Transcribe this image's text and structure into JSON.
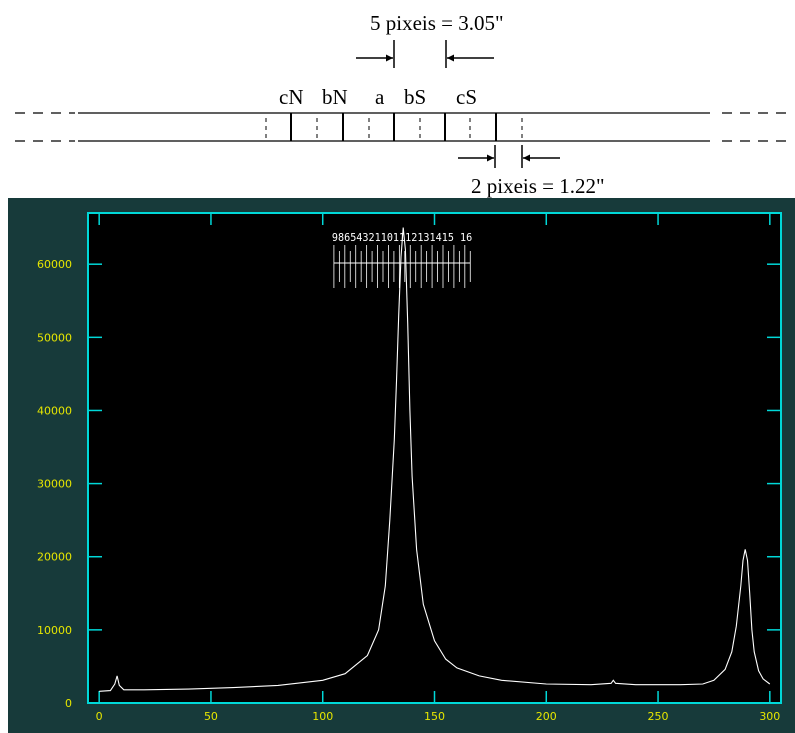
{
  "annotations": {
    "top": "5 pixeis = 3.05\"",
    "bottom": "2 pixeis = 1.22\""
  },
  "slit_labels": [
    "cN",
    "bN",
    "a",
    "bS",
    "cS"
  ],
  "colors": {
    "plot_background": "#173a3a",
    "axes_frame": "#00d8d8",
    "tick_labels": "#e6e600",
    "trace": "#ffffff"
  },
  "chart_data": {
    "type": "line",
    "title": "",
    "xlabel": "",
    "ylabel": "",
    "xlim": [
      -5,
      305
    ],
    "ylim": [
      0,
      67000
    ],
    "x_ticks": [
      0,
      50,
      100,
      150,
      200,
      250,
      300
    ],
    "y_ticks": [
      0,
      10000,
      20000,
      30000,
      40000,
      50000,
      60000
    ],
    "grid": false,
    "aperture_labels": "98654321101112131415 16",
    "aperture_x_range": [
      105,
      166
    ],
    "series": [
      {
        "name": "",
        "x": [
          0,
          5,
          7,
          8,
          9,
          11,
          20,
          40,
          60,
          80,
          100,
          110,
          120,
          125,
          128,
          130,
          132,
          133,
          134,
          135,
          136,
          137,
          138,
          139,
          140,
          142,
          145,
          150,
          155,
          160,
          170,
          180,
          200,
          220,
          229,
          230,
          231,
          240,
          260,
          270,
          275,
          280,
          283,
          285,
          287,
          288,
          289,
          290,
          291,
          292,
          293,
          295,
          297,
          300
        ],
        "y": [
          1600,
          1700,
          2600,
          3700,
          2400,
          1800,
          1800,
          1900,
          2100,
          2400,
          3100,
          4000,
          6500,
          10000,
          16000,
          25000,
          36000,
          44000,
          53000,
          61000,
          65000,
          62000,
          52000,
          40000,
          31000,
          21000,
          13500,
          8500,
          6000,
          4800,
          3700,
          3100,
          2600,
          2500,
          2700,
          3100,
          2700,
          2500,
          2500,
          2600,
          3100,
          4600,
          7000,
          10500,
          16000,
          19500,
          21000,
          19500,
          15000,
          10000,
          7000,
          4400,
          3300,
          2600
        ]
      }
    ]
  }
}
